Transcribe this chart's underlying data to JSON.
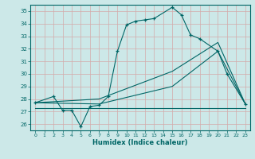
{
  "xlabel": "Humidex (Indice chaleur)",
  "bg_color": "#cce8e8",
  "line_color": "#006666",
  "grid_color": "#d4aaaa",
  "xlim": [
    -0.5,
    23.5
  ],
  "ylim": [
    25.5,
    35.5
  ],
  "yticks": [
    26,
    27,
    28,
    29,
    30,
    31,
    32,
    33,
    34,
    35
  ],
  "xticks": [
    0,
    1,
    2,
    3,
    4,
    5,
    6,
    7,
    8,
    9,
    10,
    11,
    12,
    13,
    14,
    15,
    16,
    17,
    18,
    19,
    20,
    21,
    22,
    23
  ],
  "s1x": [
    0,
    2,
    3,
    4,
    5,
    6,
    7,
    8,
    9,
    10,
    11,
    12,
    13,
    15,
    16,
    17,
    18,
    20,
    21,
    23
  ],
  "s1y": [
    27.7,
    28.2,
    27.1,
    27.1,
    25.8,
    27.4,
    27.5,
    28.2,
    31.8,
    33.9,
    34.2,
    34.3,
    34.4,
    35.3,
    34.7,
    33.1,
    32.8,
    31.8,
    30.0,
    27.6
  ],
  "s2x": [
    0,
    7,
    15,
    20,
    23
  ],
  "s2y": [
    27.7,
    28.0,
    30.2,
    32.5,
    27.6
  ],
  "s3x": [
    0,
    7,
    15,
    20,
    23
  ],
  "s3y": [
    27.7,
    27.6,
    29.0,
    31.8,
    27.6
  ],
  "s4x": [
    0,
    10,
    23
  ],
  "s4y": [
    27.3,
    27.3,
    27.3
  ]
}
